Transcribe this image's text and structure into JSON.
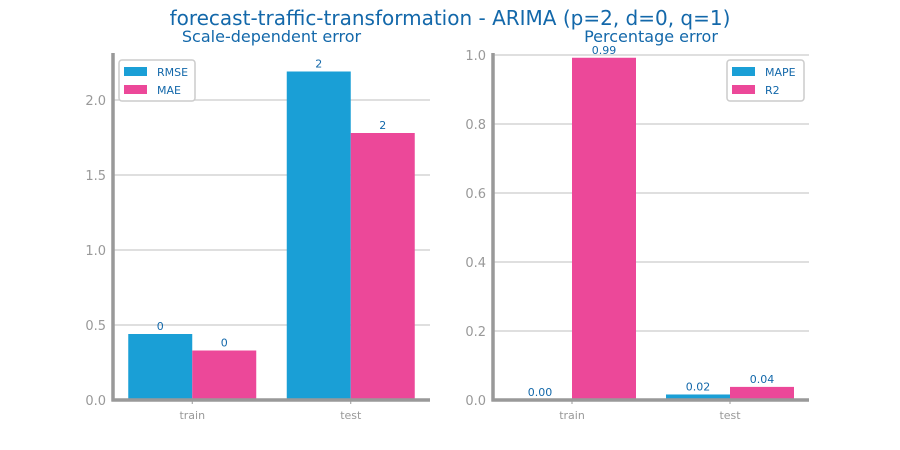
{
  "title": "forecast-traffic-transformation - ARIMA (p=2, d=0, q=1)",
  "colors": {
    "text": "#1368AA",
    "axis": "#999999",
    "grid": "#CCCCCC",
    "series1": "#1A9FD6",
    "series2": "#EC4899"
  },
  "chart_data": [
    {
      "type": "bar",
      "title": "Scale-dependent error",
      "categories": [
        "train",
        "test"
      ],
      "series": [
        {
          "name": "RMSE",
          "values": [
            0.44,
            2.19
          ],
          "labels": [
            "0",
            "2"
          ]
        },
        {
          "name": "MAE",
          "values": [
            0.33,
            1.78
          ],
          "labels": [
            "0",
            "2"
          ]
        }
      ],
      "ylim": [
        0,
        2.3
      ],
      "yticks": [
        "0.0",
        "0.5",
        "1.0",
        "1.5",
        "2.0"
      ],
      "ytick_values": [
        0,
        0.5,
        1.0,
        1.5,
        2.0
      ],
      "legend": "top-left",
      "grid": true
    },
    {
      "type": "bar",
      "title": "Percentage error",
      "categories": [
        "train",
        "test"
      ],
      "series": [
        {
          "name": "MAPE",
          "values": [
            0.0,
            0.016
          ],
          "labels": [
            "0.00",
            "0.02"
          ]
        },
        {
          "name": "R2",
          "values": [
            0.992,
            0.038
          ],
          "labels": [
            "0.99",
            "0.04"
          ]
        }
      ],
      "ylim": [
        0,
        1.0
      ],
      "yticks": [
        "0.0",
        "0.2",
        "0.4",
        "0.6",
        "0.8",
        "1.0"
      ],
      "ytick_values": [
        0,
        0.2,
        0.4,
        0.6,
        0.8,
        1.0
      ],
      "legend": "top-right",
      "grid": true
    }
  ]
}
